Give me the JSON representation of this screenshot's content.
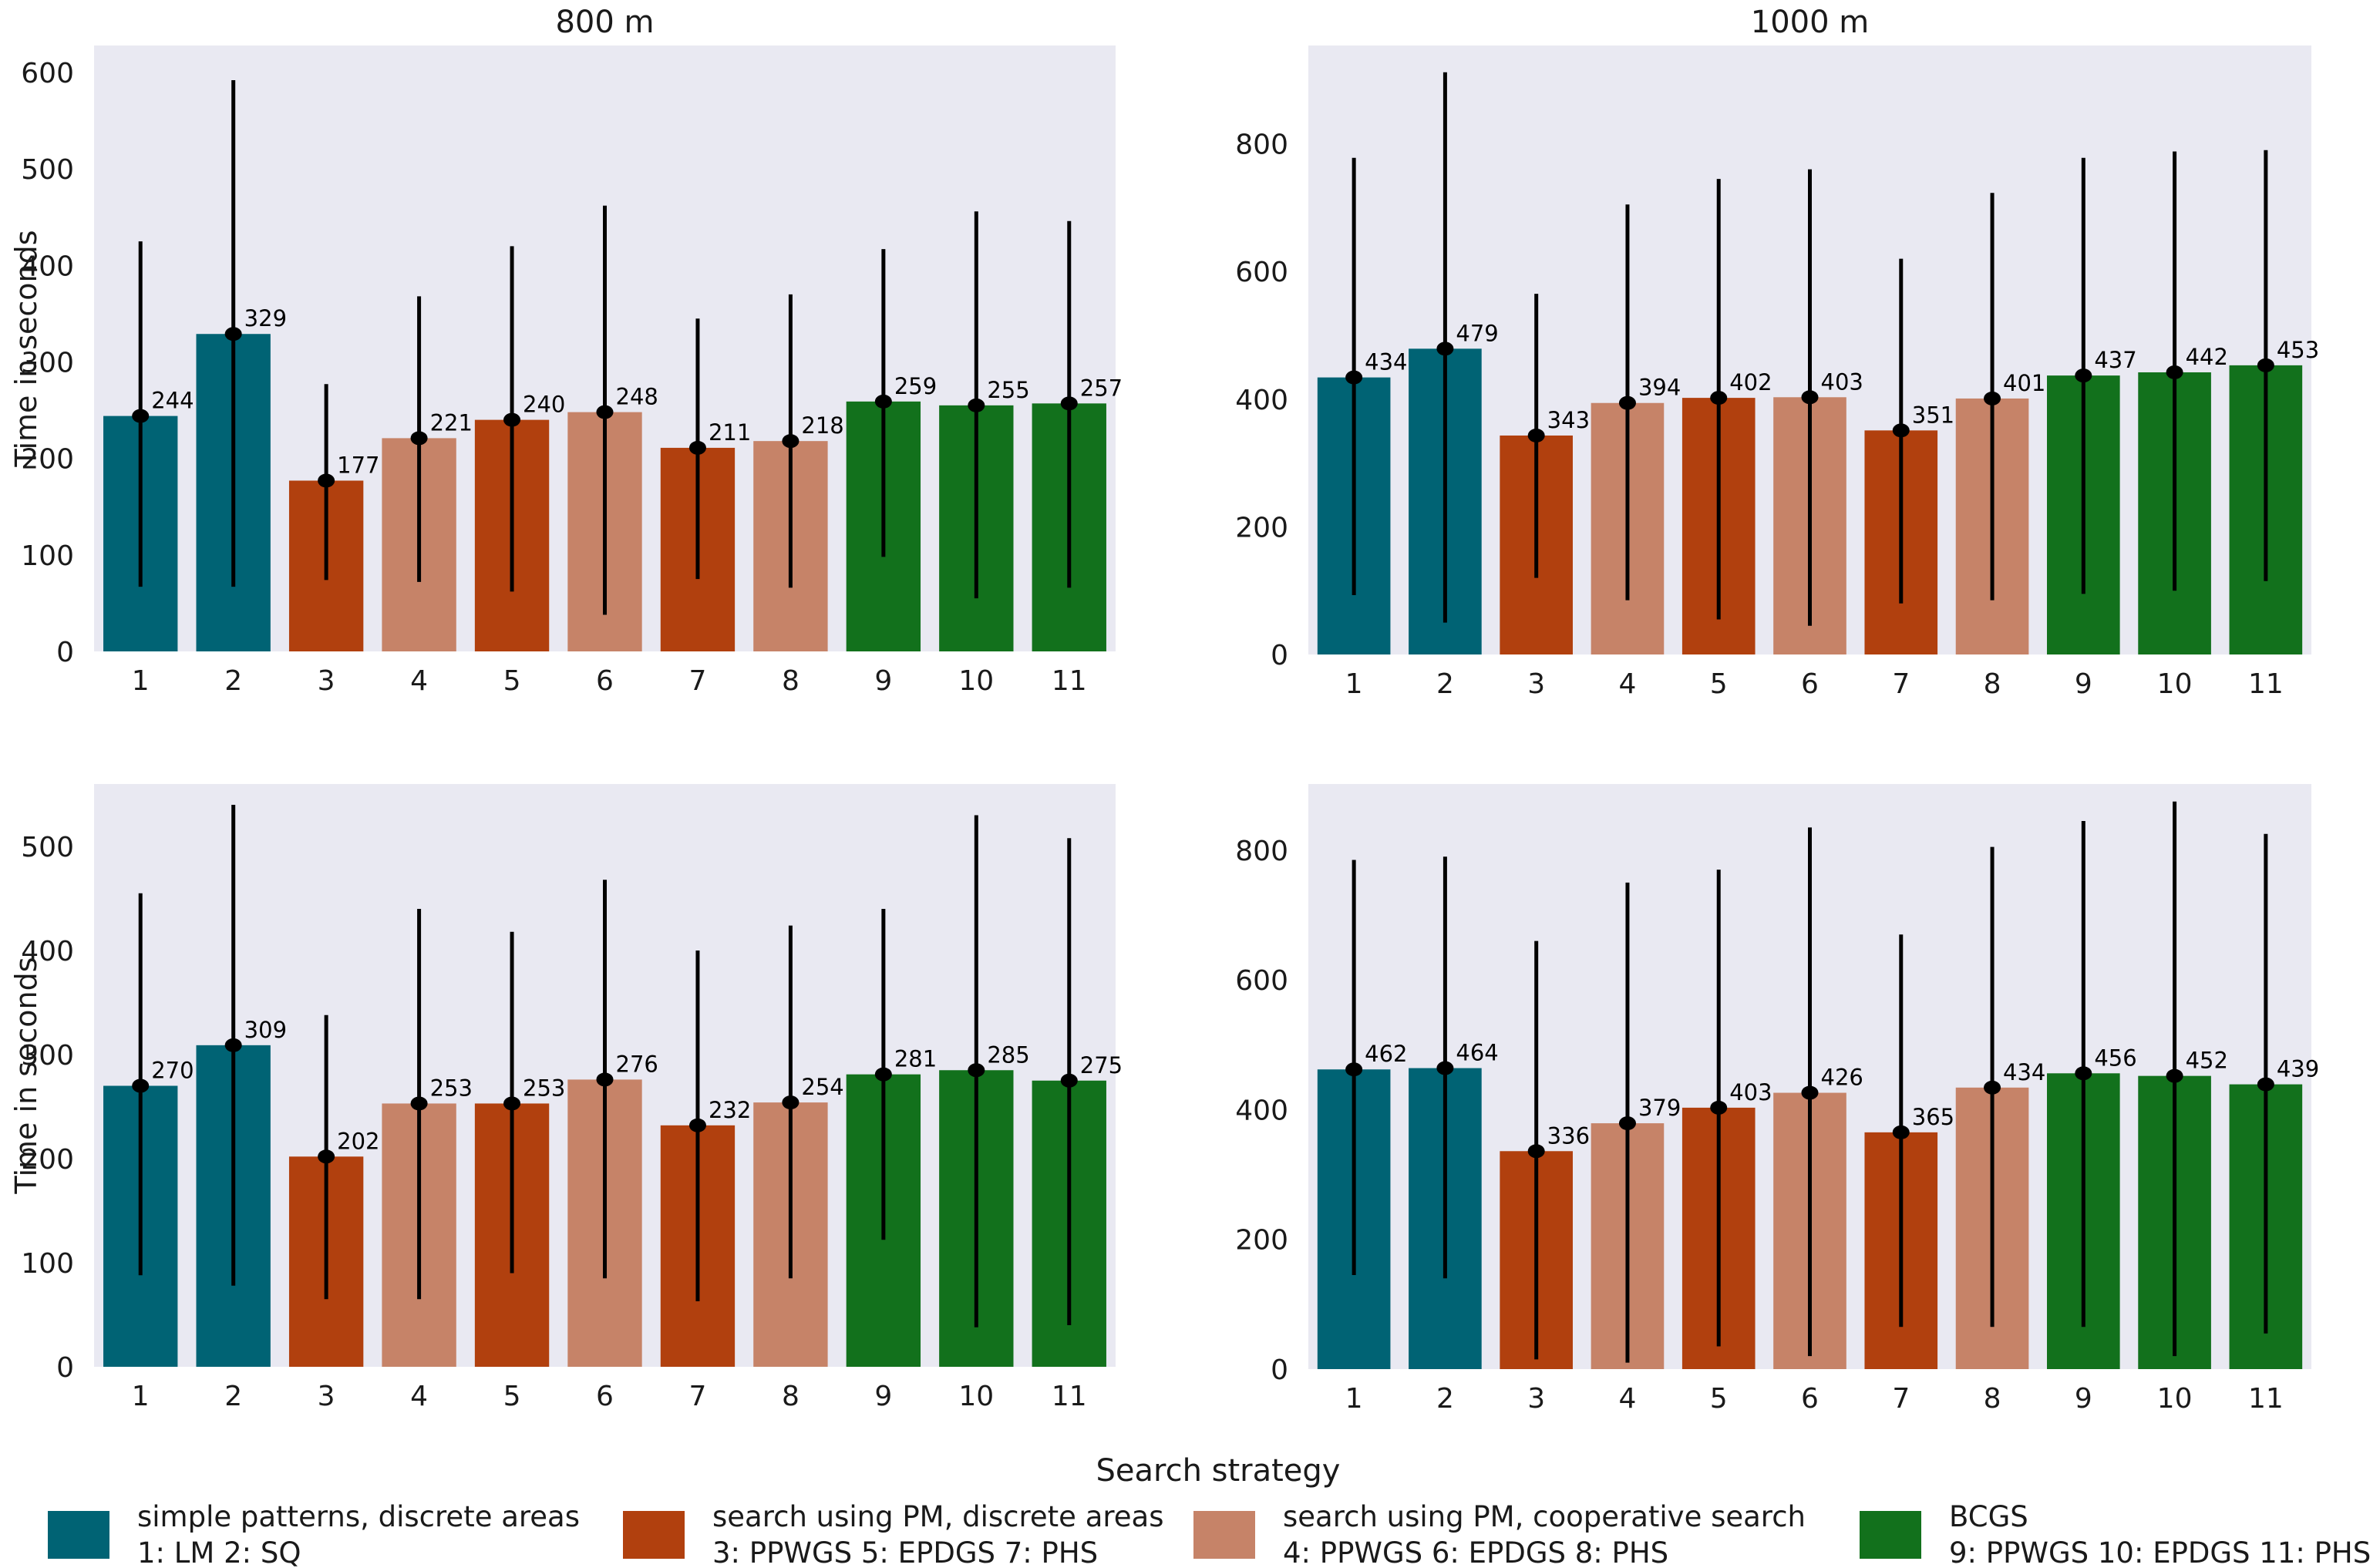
{
  "figure": {
    "background": "#ffffff",
    "plot_background": "#e9e9f2",
    "text_color": "#1a1a1a",
    "error_bar_color": "#000000",
    "xlabel": "Search strategy",
    "ylabel": "Time in seconds"
  },
  "palette": {
    "teal": "#006374",
    "dark_orange": "#b1400e",
    "salmon": "#c68368",
    "green": "#12711c"
  },
  "bar_colors": [
    "teal",
    "teal",
    "dark_orange",
    "salmon",
    "dark_orange",
    "salmon",
    "dark_orange",
    "salmon",
    "green",
    "green",
    "green"
  ],
  "chart_data": [
    {
      "type": "bar",
      "position": "top-left",
      "title": "800 m",
      "ylabel": "Time in seconds",
      "categories": [
        "1",
        "2",
        "3",
        "4",
        "5",
        "6",
        "7",
        "8",
        "9",
        "10",
        "11"
      ],
      "values": [
        244,
        329,
        177,
        221,
        240,
        248,
        211,
        218,
        259,
        255,
        257
      ],
      "error_low": [
        67,
        67,
        74,
        72,
        62,
        38,
        75,
        66,
        98,
        55,
        66
      ],
      "error_high": [
        425,
        592,
        277,
        368,
        420,
        462,
        345,
        370,
        417,
        456,
        446
      ],
      "yticks": [
        0,
        100,
        200,
        300,
        400,
        500,
        600
      ],
      "ylim": [
        0,
        628
      ],
      "grid": false,
      "legend_position": "none"
    },
    {
      "type": "bar",
      "position": "top-right",
      "title": "1000 m",
      "ylabel": "",
      "categories": [
        "1",
        "2",
        "3",
        "4",
        "5",
        "6",
        "7",
        "8",
        "9",
        "10",
        "11"
      ],
      "values": [
        434,
        479,
        343,
        394,
        402,
        403,
        351,
        401,
        437,
        442,
        453
      ],
      "error_low": [
        93,
        50,
        120,
        85,
        55,
        45,
        80,
        85,
        95,
        100,
        115
      ],
      "error_high": [
        778,
        912,
        565,
        705,
        745,
        760,
        620,
        723,
        778,
        788,
        790
      ],
      "yticks": [
        0,
        200,
        400,
        600,
        800
      ],
      "ylim": [
        0,
        954
      ],
      "grid": false,
      "legend_position": "none"
    },
    {
      "type": "bar",
      "position": "bottom-left",
      "title": "",
      "ylabel": "Time in seconds",
      "categories": [
        "1",
        "2",
        "3",
        "4",
        "5",
        "6",
        "7",
        "8",
        "9",
        "10",
        "11"
      ],
      "values": [
        270,
        309,
        202,
        253,
        253,
        276,
        232,
        254,
        281,
        285,
        275
      ],
      "error_low": [
        88,
        78,
        65,
        65,
        90,
        85,
        63,
        85,
        122,
        38,
        40
      ],
      "error_high": [
        455,
        540,
        338,
        440,
        418,
        468,
        400,
        424,
        440,
        530,
        508
      ],
      "yticks": [
        0,
        100,
        200,
        300,
        400,
        500
      ],
      "ylim": [
        0,
        560
      ],
      "grid": false,
      "legend_position": "none"
    },
    {
      "type": "bar",
      "position": "bottom-right",
      "title": "",
      "ylabel": "",
      "categories": [
        "1",
        "2",
        "3",
        "4",
        "5",
        "6",
        "7",
        "8",
        "9",
        "10",
        "11"
      ],
      "values": [
        462,
        464,
        336,
        379,
        403,
        426,
        365,
        434,
        456,
        452,
        439
      ],
      "error_low": [
        145,
        140,
        15,
        10,
        35,
        20,
        65,
        65,
        65,
        20,
        55
      ],
      "error_high": [
        785,
        790,
        660,
        750,
        770,
        835,
        670,
        805,
        845,
        875,
        825
      ],
      "yticks": [
        0,
        200,
        400,
        600,
        800
      ],
      "ylim": [
        0,
        902
      ],
      "grid": false,
      "legend_position": "none"
    }
  ],
  "legend": [
    {
      "color": "teal",
      "line1": "simple patterns, discrete areas",
      "line2": "1: LM 2: SQ"
    },
    {
      "color": "dark_orange",
      "line1": "search using PM, discrete areas",
      "line2": "3: PPWGS 5: EPDGS 7: PHS"
    },
    {
      "color": "salmon",
      "line1": "search using PM, cooperative search",
      "line2": "4: PPWGS 6: EPDGS 8: PHS"
    },
    {
      "color": "green",
      "line1": "BCGS",
      "line2": "9: PPWGS 10: EPDGS 11: PHS"
    }
  ]
}
